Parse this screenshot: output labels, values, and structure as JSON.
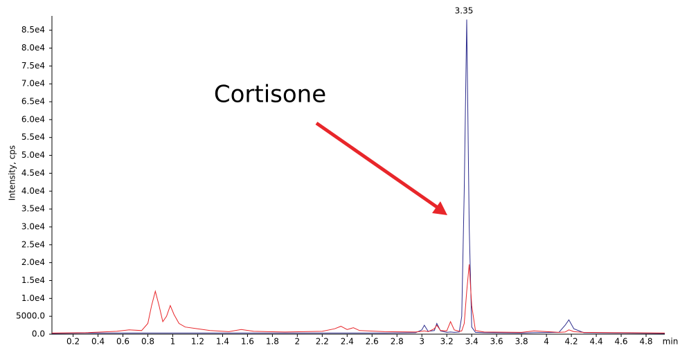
{
  "chart_data": {
    "type": "line",
    "y_label": "Intensity, cps",
    "x_label": "min",
    "annotation": "Cortisone",
    "annotation_color": "#e8552e",
    "peak_label": "3.35",
    "x": [
      0.03,
      0.3,
      0.55,
      0.65,
      0.75,
      0.8,
      0.83,
      0.86,
      0.89,
      0.92,
      0.95,
      0.98,
      1.01,
      1.05,
      1.1,
      1.2,
      1.3,
      1.45,
      1.55,
      1.65,
      1.9,
      2.2,
      2.3,
      2.35,
      2.4,
      2.45,
      2.5,
      2.7,
      2.95,
      3.0,
      3.02,
      3.05,
      3.1,
      3.12,
      3.15,
      3.2,
      3.23,
      3.26,
      3.3,
      3.32,
      3.34,
      3.36,
      3.38,
      3.4,
      3.43,
      3.5,
      3.8,
      3.9,
      4.1,
      4.15,
      4.18,
      4.22,
      4.3,
      4.6,
      4.95
    ],
    "series": [
      {
        "color": "#2b2b8c",
        "values": [
          200,
          300,
          300,
          300,
          300,
          300,
          300,
          300,
          300,
          300,
          300,
          300,
          300,
          300,
          300,
          300,
          300,
          300,
          300,
          300,
          300,
          300,
          300,
          300,
          300,
          300,
          300,
          300,
          400,
          1200,
          2500,
          800,
          1000,
          3000,
          900,
          500,
          600,
          500,
          600,
          5000,
          40000,
          88000,
          30000,
          2000,
          500,
          400,
          300,
          400,
          500,
          2500,
          4000,
          1500,
          400,
          300,
          200
        ]
      },
      {
        "color": "#e8262a",
        "values": [
          300,
          400,
          800,
          1200,
          1000,
          3000,
          8000,
          12000,
          8000,
          3500,
          5000,
          8000,
          5500,
          3000,
          2000,
          1500,
          1000,
          700,
          1300,
          800,
          600,
          800,
          1500,
          2200,
          1300,
          1800,
          1000,
          700,
          600,
          800,
          900,
          700,
          1500,
          2500,
          1000,
          900,
          3500,
          1200,
          800,
          900,
          3000,
          12000,
          19500,
          8000,
          1000,
          600,
          500,
          900,
          500,
          600,
          1200,
          700,
          500,
          400,
          300
        ]
      }
    ],
    "xlim": [
      0.03,
      4.95
    ],
    "ylim": [
      0,
      89000
    ],
    "xticks": [
      0.2,
      0.4,
      0.6,
      0.8,
      1.0,
      1.2,
      1.4,
      1.6,
      1.8,
      2.0,
      2.2,
      2.4,
      2.6,
      2.8,
      3.0,
      3.2,
      3.4,
      3.6,
      3.8,
      4.0,
      4.2,
      4.4,
      4.6,
      4.8
    ],
    "yticks": [
      {
        "value": 0,
        "label": "0.0"
      },
      {
        "value": 5000,
        "label": "5000.0"
      },
      {
        "value": 10000,
        "label": "1.0e4"
      },
      {
        "value": 15000,
        "label": "1.5e4"
      },
      {
        "value": 20000,
        "label": "2.0e4"
      },
      {
        "value": 25000,
        "label": "2.5e4"
      },
      {
        "value": 30000,
        "label": "3.0e4"
      },
      {
        "value": 35000,
        "label": "3.5e4"
      },
      {
        "value": 40000,
        "label": "4.0e4"
      },
      {
        "value": 45000,
        "label": "4.5e4"
      },
      {
        "value": 50000,
        "label": "5.0e4"
      },
      {
        "value": 55000,
        "label": "5.5e4"
      },
      {
        "value": 60000,
        "label": "6.0e4"
      },
      {
        "value": 65000,
        "label": "6.5e4"
      },
      {
        "value": 70000,
        "label": "7.0e4"
      },
      {
        "value": 75000,
        "label": "7.5e4"
      },
      {
        "value": 80000,
        "label": "8.0e4"
      },
      {
        "value": 85000,
        "label": "8.5e4"
      }
    ]
  }
}
